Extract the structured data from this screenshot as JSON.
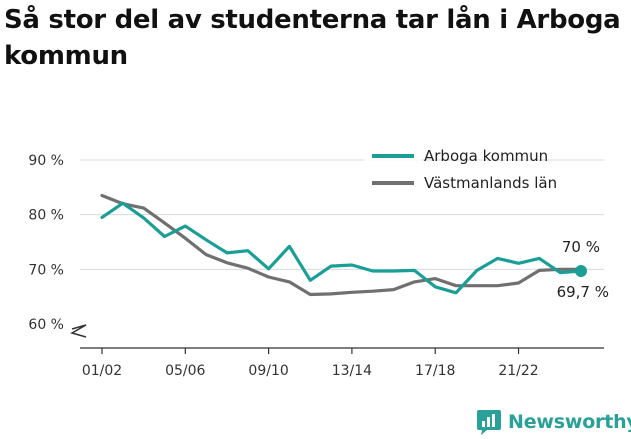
{
  "title": "Så stor del av studenterna tar lån i Arboga kommun",
  "brand": {
    "name": "Newsworthy",
    "icon": "newsworthy-logo-icon",
    "color": "#2aa198"
  },
  "chart_data": {
    "type": "line",
    "title": "Så stor del av studenterna tar lån i Arboga kommun",
    "xlabel": "",
    "ylabel": "",
    "ylim": [
      60,
      90
    ],
    "y_ticks": [
      "60 %",
      "70 %",
      "80 %",
      "90 %"
    ],
    "x_ticks": [
      "01/02",
      "05/06",
      "09/10",
      "13/14",
      "17/18",
      "21/22"
    ],
    "grid": true,
    "legend_position": "top-right",
    "x": [
      "01/02",
      "02/03",
      "03/04",
      "04/05",
      "05/06",
      "06/07",
      "07/08",
      "08/09",
      "09/10",
      "10/11",
      "11/12",
      "12/13",
      "13/14",
      "14/15",
      "15/16",
      "16/17",
      "17/18",
      "18/19",
      "19/20",
      "20/21",
      "21/22",
      "22/23",
      "23/24",
      "24/25"
    ],
    "series": [
      {
        "name": "Arboga kommun",
        "color": "#1a9e96",
        "values": [
          79.5,
          82.1,
          79.4,
          76.0,
          77.9,
          75.4,
          73.0,
          73.4,
          70.1,
          74.2,
          68.0,
          70.6,
          70.8,
          69.7,
          69.7,
          69.8,
          66.8,
          65.7,
          69.8,
          72.0,
          71.1,
          72.0,
          69.4,
          69.7
        ],
        "end_label": "69,7 %"
      },
      {
        "name": "Västmanlands län",
        "color": "#707070",
        "values": [
          83.5,
          82.0,
          81.2,
          78.5,
          75.7,
          72.7,
          71.2,
          70.2,
          68.6,
          67.7,
          65.4,
          65.5,
          65.8,
          66.0,
          66.3,
          67.7,
          68.3,
          67.0,
          67.0,
          67.0,
          67.5,
          69.8,
          70.0,
          70.0
        ],
        "end_label": "70 %"
      }
    ]
  }
}
